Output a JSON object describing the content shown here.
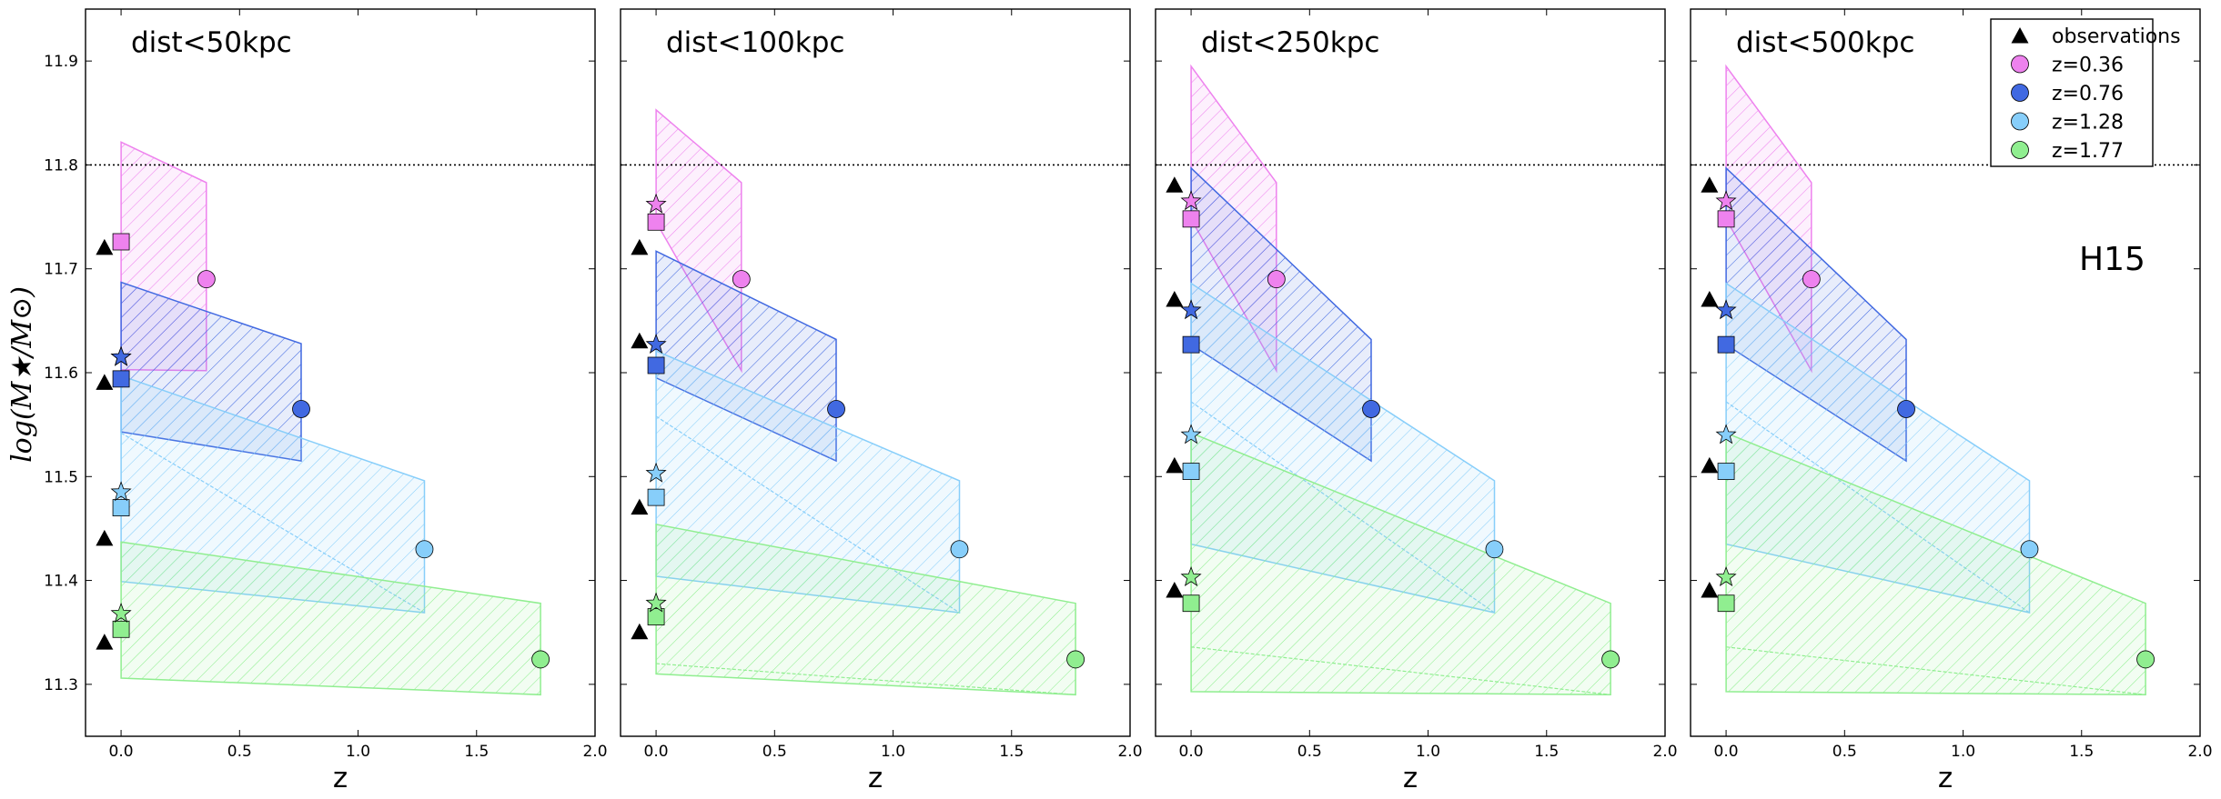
{
  "chart_data": {
    "type": "scatter",
    "ylabel": "log(M★/M⊙)",
    "ylim": [
      11.25,
      11.95
    ],
    "xlim": [
      -0.15,
      2.0
    ],
    "yticks": [
      "11.3",
      "11.4",
      "11.5",
      "11.6",
      "11.7",
      "11.8",
      "11.9"
    ],
    "xticks": [
      "0.0",
      "0.5",
      "1.0",
      "1.5",
      "2.0"
    ],
    "reference_line_y": 11.8,
    "annotation": "H15",
    "legend": [
      {
        "label": "observations",
        "marker": "triangle",
        "color": "#000000"
      },
      {
        "label": "z=0.36",
        "marker": "circle",
        "color": "#ee82ee"
      },
      {
        "label": "z=0.76",
        "marker": "circle",
        "color": "#4169e1"
      },
      {
        "label": "z=1.28",
        "marker": "circle",
        "color": "#87cefa"
      },
      {
        "label": "z=1.77",
        "marker": "circle",
        "color": "#90ee90"
      }
    ],
    "redshifts": [
      {
        "z": 0.36,
        "color": "#ee82ee"
      },
      {
        "z": 0.76,
        "color": "#4169e1"
      },
      {
        "z": 1.28,
        "color": "#87cefa"
      },
      {
        "z": 1.77,
        "color": "#90ee90"
      }
    ],
    "panels": [
      {
        "title": "dist<50kpc",
        "xlabel": "z",
        "observations_x": -0.07,
        "observations": [
          11.72,
          11.59,
          11.44,
          11.34
        ],
        "series": [
          {
            "circle": 11.69,
            "star": 11.615,
            "square": 11.726,
            "poly": [
              11.822,
              11.603,
              11.602,
              11.783
            ],
            "lower": null
          },
          {
            "circle": 11.565,
            "star": 11.615,
            "square": 11.594,
            "poly": [
              11.687,
              11.543,
              11.515,
              11.628
            ],
            "lower": null
          },
          {
            "circle": 11.43,
            "star": 11.485,
            "square": 11.47,
            "poly": [
              11.597,
              11.399,
              11.369,
              11.496
            ],
            "lower": 11.542
          },
          {
            "circle": 11.324,
            "star": 11.368,
            "square": 11.353,
            "poly": [
              11.437,
              11.306,
              11.29,
              11.378
            ],
            "lower": null
          }
        ]
      },
      {
        "title": "dist<100kpc",
        "xlabel": "z",
        "observations_x": -0.07,
        "observations": [
          11.72,
          11.63,
          11.47,
          11.35
        ],
        "series": [
          {
            "circle": 11.69,
            "star": 11.762,
            "square": 11.745,
            "poly": [
              11.853,
              11.745,
              11.602,
              11.783
            ],
            "lower": null
          },
          {
            "circle": 11.565,
            "star": 11.627,
            "square": 11.607,
            "poly": [
              11.717,
              11.595,
              11.515,
              11.632
            ],
            "lower": null
          },
          {
            "circle": 11.43,
            "star": 11.503,
            "square": 11.48,
            "poly": [
              11.621,
              11.404,
              11.369,
              11.496
            ],
            "lower": 11.558
          },
          {
            "circle": 11.324,
            "star": 11.378,
            "square": 11.365,
            "poly": [
              11.454,
              11.31,
              11.29,
              11.378
            ],
            "lower": 11.32
          }
        ]
      },
      {
        "title": "dist<250kpc",
        "xlabel": "z",
        "observations_x": -0.07,
        "observations": [
          11.78,
          11.67,
          11.51,
          11.39
        ],
        "series": [
          {
            "circle": 11.69,
            "star": 11.765,
            "square": 11.748,
            "poly": [
              11.895,
              11.748,
              11.602,
              11.783
            ],
            "lower": null
          },
          {
            "circle": 11.565,
            "star": 11.66,
            "square": 11.627,
            "poly": [
              11.797,
              11.627,
              11.515,
              11.632
            ],
            "lower": null
          },
          {
            "circle": 11.43,
            "star": 11.54,
            "square": 11.505,
            "poly": [
              11.686,
              11.435,
              11.369,
              11.496
            ],
            "lower": 11.572
          },
          {
            "circle": 11.324,
            "star": 11.403,
            "square": 11.378,
            "poly": [
              11.542,
              11.293,
              11.29,
              11.378
            ],
            "lower": 11.336
          }
        ]
      },
      {
        "title": "dist<500kpc",
        "xlabel": "z",
        "observations_x": -0.07,
        "observations": [
          11.78,
          11.67,
          11.51,
          11.39
        ],
        "series": [
          {
            "circle": 11.69,
            "star": 11.765,
            "square": 11.748,
            "poly": [
              11.895,
              11.748,
              11.602,
              11.783
            ],
            "lower": null
          },
          {
            "circle": 11.565,
            "star": 11.66,
            "square": 11.627,
            "poly": [
              11.797,
              11.627,
              11.515,
              11.632
            ],
            "lower": null
          },
          {
            "circle": 11.43,
            "star": 11.54,
            "square": 11.505,
            "poly": [
              11.686,
              11.435,
              11.369,
              11.496
            ],
            "lower": 11.572
          },
          {
            "circle": 11.324,
            "star": 11.403,
            "square": 11.378,
            "poly": [
              11.542,
              11.293,
              11.29,
              11.378
            ],
            "lower": 11.336
          }
        ]
      }
    ]
  }
}
